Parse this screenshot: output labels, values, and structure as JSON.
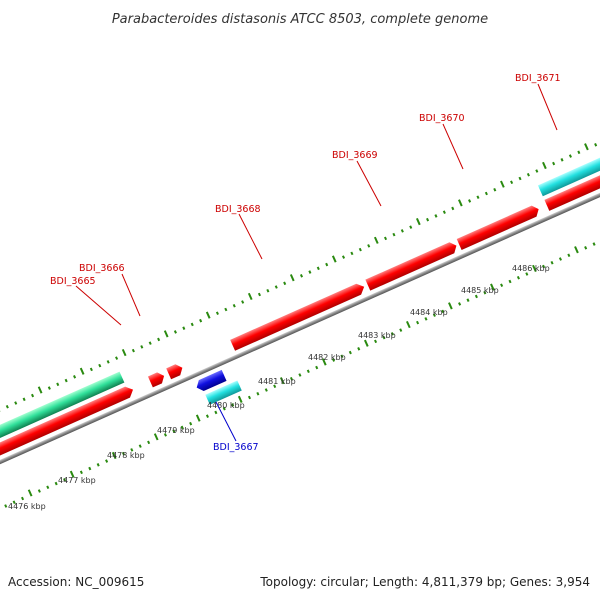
{
  "title": "Parabacteroides distasonis ATCC 8503, complete genome",
  "accession": "Accession: NC_009615",
  "summary": "Topology: circular; Length: 4,811,379 bp; Genes: 3,954",
  "colors": {
    "forward_gene": "#ff0000",
    "reverse_gene": "#1010e0",
    "forward_rna": "#20d8d8",
    "reverse_rna": "#33e0a0",
    "backbone": "#888888",
    "ticks": "#2a8a10",
    "forward_label": "#cc0000",
    "reverse_label": "#0000cc"
  },
  "scale_labels": [
    "4476 kbp",
    "4477 kbp",
    "4478 kbp",
    "4479 kbp",
    "4480 kbp",
    "4481 kbp",
    "4482 kbp",
    "4483 kbp",
    "4484 kbp",
    "4485 kbp",
    "4486 kbp"
  ],
  "gene_labels": [
    {
      "text": "BDI_3665",
      "strand": "forward"
    },
    {
      "text": "BDI_3666",
      "strand": "forward"
    },
    {
      "text": "BDI_3667",
      "strand": "reverse"
    },
    {
      "text": "BDI_3668",
      "strand": "forward"
    },
    {
      "text": "BDI_3669",
      "strand": "forward"
    },
    {
      "text": "BDI_3670",
      "strand": "forward"
    },
    {
      "text": "BDI_3671",
      "strand": "forward"
    }
  ]
}
